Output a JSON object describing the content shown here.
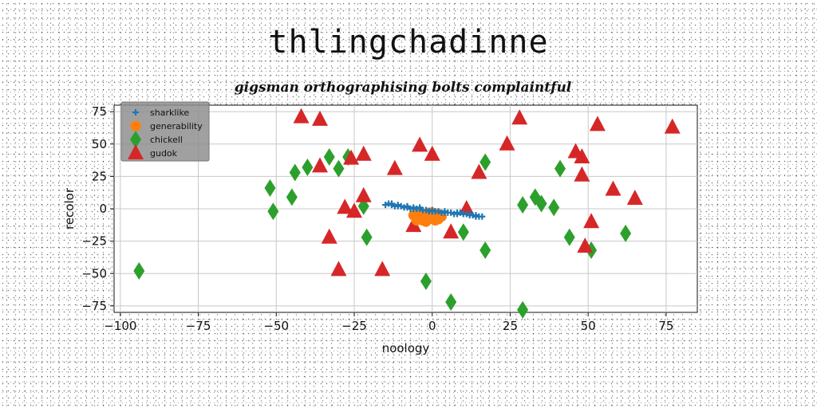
{
  "chart_data": {
    "type": "scatter",
    "title": "thlingchadinne",
    "subtitle": "gigsman orthographising bolts complaintful",
    "xlabel": "noology",
    "ylabel": "recolor",
    "xlim": [
      -102,
      85
    ],
    "ylim": [
      -80,
      80
    ],
    "x_ticks": [
      -100,
      -75,
      -50,
      -25,
      0,
      25,
      50,
      75
    ],
    "x_tick_labels": [
      "−100",
      "−75",
      "−50",
      "−25",
      "0",
      "25",
      "50",
      "75"
    ],
    "y_ticks": [
      75,
      50,
      25,
      0,
      -25,
      -50,
      -75
    ],
    "y_tick_labels": [
      "75",
      "50",
      "25",
      "0",
      "−25",
      "−50",
      "−75"
    ],
    "grid": true,
    "legend_position": "top-left",
    "series": [
      {
        "name": "sharklike",
        "marker": "plus",
        "color": "#1f77b4",
        "points": [
          [
            -15,
            3
          ],
          [
            -14,
            4
          ],
          [
            -13,
            3
          ],
          [
            -12,
            2
          ],
          [
            -11,
            3
          ],
          [
            -10,
            2
          ],
          [
            -9,
            1
          ],
          [
            -8,
            1
          ],
          [
            -7,
            0
          ],
          [
            -6,
            1
          ],
          [
            -5,
            0
          ],
          [
            -4,
            0
          ],
          [
            -3,
            -1
          ],
          [
            -2,
            -1
          ],
          [
            -1,
            -2
          ],
          [
            0,
            -1
          ],
          [
            1,
            -2
          ],
          [
            2,
            -2
          ],
          [
            3,
            -3
          ],
          [
            4,
            -2
          ],
          [
            5,
            -3
          ],
          [
            6,
            -3
          ],
          [
            7,
            -4
          ],
          [
            8,
            -4
          ],
          [
            9,
            -3
          ],
          [
            10,
            -4
          ],
          [
            11,
            -4
          ],
          [
            12,
            -5
          ],
          [
            13,
            -5
          ],
          [
            14,
            -5
          ],
          [
            15,
            -6
          ],
          [
            16,
            -6
          ],
          [
            -13,
            4
          ],
          [
            -11,
            2
          ],
          [
            -8,
            2
          ],
          [
            -6,
            0
          ],
          [
            -4,
            1
          ],
          [
            0,
            -2
          ],
          [
            4,
            -3
          ],
          [
            8,
            -3
          ],
          [
            12,
            -4
          ],
          [
            14,
            -6
          ]
        ]
      },
      {
        "name": "generability",
        "marker": "circle",
        "color": "#ff7f0e",
        "points": [
          [
            -6,
            -5
          ],
          [
            -5,
            -3
          ],
          [
            -4,
            -7
          ],
          [
            -3,
            -4
          ],
          [
            -2,
            -6
          ],
          [
            -1,
            -3
          ],
          [
            0,
            -5
          ],
          [
            1,
            -7
          ],
          [
            2,
            -4
          ],
          [
            -5,
            -9
          ],
          [
            -3,
            -9
          ],
          [
            -1,
            -8
          ],
          [
            1,
            -9
          ],
          [
            3,
            -6
          ],
          [
            -4,
            -5
          ],
          [
            0,
            -3
          ],
          [
            -2,
            -10
          ],
          [
            2,
            -8
          ]
        ]
      },
      {
        "name": "chickell",
        "marker": "diamond",
        "color": "#2ca02c",
        "points": [
          [
            -94,
            -48
          ],
          [
            -52,
            16
          ],
          [
            -51,
            -2
          ],
          [
            -45,
            9
          ],
          [
            -44,
            28
          ],
          [
            -40,
            32
          ],
          [
            -33,
            40
          ],
          [
            -30,
            31
          ],
          [
            -27,
            40
          ],
          [
            -22,
            2
          ],
          [
            -21,
            -22
          ],
          [
            -2,
            -56
          ],
          [
            6,
            -72
          ],
          [
            10,
            -18
          ],
          [
            17,
            36
          ],
          [
            17,
            -32
          ],
          [
            29,
            3
          ],
          [
            29,
            -78
          ],
          [
            33,
            9
          ],
          [
            35,
            4
          ],
          [
            39,
            1
          ],
          [
            41,
            31
          ],
          [
            44,
            -22
          ],
          [
            51,
            -32
          ],
          [
            62,
            -19
          ]
        ]
      },
      {
        "name": "gudok",
        "marker": "triangle",
        "color": "#d62728",
        "points": [
          [
            -42,
            71
          ],
          [
            -36,
            69
          ],
          [
            -36,
            33
          ],
          [
            -33,
            -22
          ],
          [
            -30,
            -47
          ],
          [
            -28,
            1
          ],
          [
            -26,
            39
          ],
          [
            -25,
            -2
          ],
          [
            -22,
            42
          ],
          [
            -22,
            10
          ],
          [
            -16,
            -47
          ],
          [
            -12,
            31
          ],
          [
            -4,
            49
          ],
          [
            -6,
            -13
          ],
          [
            0,
            42
          ],
          [
            6,
            -18
          ],
          [
            11,
            0
          ],
          [
            15,
            28
          ],
          [
            24,
            50
          ],
          [
            28,
            70
          ],
          [
            46,
            44
          ],
          [
            48,
            40
          ],
          [
            48,
            26
          ],
          [
            49,
            -29
          ],
          [
            51,
            -10
          ],
          [
            53,
            65
          ],
          [
            58,
            15
          ],
          [
            65,
            8
          ],
          [
            77,
            63
          ]
        ]
      }
    ]
  }
}
